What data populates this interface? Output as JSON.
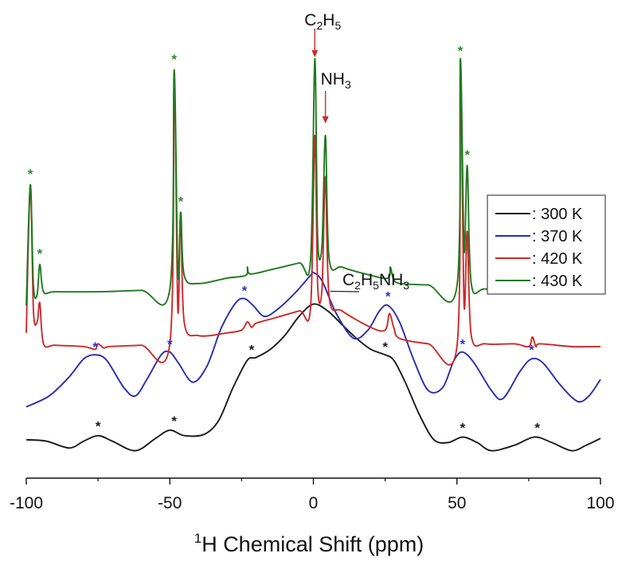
{
  "chart_data": {
    "type": "line",
    "xlabel_sup": "1",
    "xlabel_main": "H Chemical Shift (ppm)",
    "ylabel": "",
    "xlim": [
      -100,
      100
    ],
    "xticks": [
      -100,
      -50,
      0,
      50,
      100
    ],
    "xtick_labels": [
      "-100",
      "-50",
      "0",
      "50",
      "100"
    ],
    "y_ticks_shown": false,
    "grid": false,
    "legend_position": "right",
    "series": [
      {
        "name": ": 300 K",
        "color": "#1a1a1a",
        "points": [
          [
            -100,
            0.09
          ],
          [
            -93,
            0.085
          ],
          [
            -85,
            0.06
          ],
          [
            -80,
            0.085
          ],
          [
            -75,
            0.105
          ],
          [
            -70,
            0.085
          ],
          [
            -62,
            0.05
          ],
          [
            -55,
            0.095
          ],
          [
            -50,
            0.125
          ],
          [
            -45,
            0.105
          ],
          [
            -38,
            0.11
          ],
          [
            -33,
            0.16
          ],
          [
            -28,
            0.28
          ],
          [
            -23,
            0.38
          ],
          [
            -20,
            0.39
          ],
          [
            -15,
            0.42
          ],
          [
            -10,
            0.47
          ],
          [
            -5,
            0.54
          ],
          [
            0,
            0.585
          ],
          [
            5,
            0.56
          ],
          [
            10,
            0.51
          ],
          [
            15,
            0.46
          ],
          [
            20,
            0.42
          ],
          [
            25,
            0.4
          ],
          [
            28,
            0.38
          ],
          [
            32,
            0.3
          ],
          [
            37,
            0.18
          ],
          [
            42,
            0.09
          ],
          [
            47,
            0.08
          ],
          [
            52,
            0.1
          ],
          [
            57,
            0.08
          ],
          [
            62,
            0.05
          ],
          [
            70,
            0.07
          ],
          [
            77,
            0.1
          ],
          [
            83,
            0.08
          ],
          [
            90,
            0.05
          ],
          [
            95,
            0.07
          ],
          [
            100,
            0.095
          ]
        ]
      },
      {
        "name": ": 370 K",
        "color": "#2b2bb2",
        "points": [
          [
            -100,
            0.21
          ],
          [
            -92,
            0.25
          ],
          [
            -85,
            0.32
          ],
          [
            -80,
            0.385
          ],
          [
            -76,
            0.4
          ],
          [
            -72,
            0.38
          ],
          [
            -66,
            0.28
          ],
          [
            -62,
            0.25
          ],
          [
            -58,
            0.31
          ],
          [
            -53,
            0.4
          ],
          [
            -50,
            0.41
          ],
          [
            -47,
            0.37
          ],
          [
            -42,
            0.3
          ],
          [
            -37,
            0.36
          ],
          [
            -32,
            0.5
          ],
          [
            -27,
            0.59
          ],
          [
            -24,
            0.605
          ],
          [
            -21,
            0.58
          ],
          [
            -17,
            0.54
          ],
          [
            -12,
            0.57
          ],
          [
            -6,
            0.63
          ],
          [
            -1,
            0.69
          ],
          [
            0,
            0.7
          ],
          [
            3,
            0.67
          ],
          [
            8,
            0.55
          ],
          [
            14,
            0.46
          ],
          [
            19,
            0.49
          ],
          [
            23,
            0.56
          ],
          [
            26,
            0.58
          ],
          [
            30,
            0.52
          ],
          [
            35,
            0.38
          ],
          [
            40,
            0.27
          ],
          [
            45,
            0.28
          ],
          [
            49,
            0.38
          ],
          [
            52,
            0.41
          ],
          [
            56,
            0.37
          ],
          [
            62,
            0.27
          ],
          [
            66,
            0.24
          ],
          [
            72,
            0.34
          ],
          [
            76,
            0.385
          ],
          [
            80,
            0.37
          ],
          [
            86,
            0.29
          ],
          [
            92,
            0.23
          ],
          [
            96,
            0.25
          ],
          [
            100,
            0.31
          ]
        ]
      },
      {
        "name": ": 420 K",
        "color": "#cc2a2a",
        "points": [
          [
            -100,
            0.48
          ],
          [
            -98.6,
            1.02
          ],
          [
            -97.5,
            0.56
          ],
          [
            -96.2,
            0.52
          ],
          [
            -95.3,
            0.59
          ],
          [
            -94,
            0.44
          ],
          [
            -90,
            0.435
          ],
          [
            -80,
            0.43
          ],
          [
            -76,
            0.42
          ],
          [
            -75,
            0.44
          ],
          [
            -73,
            0.425
          ],
          [
            -71,
            0.43
          ],
          [
            -60,
            0.435
          ],
          [
            -50,
            0.44
          ],
          [
            -48.5,
            1.38
          ],
          [
            -47.2,
            0.56
          ],
          [
            -46.2,
            0.92
          ],
          [
            -45,
            0.52
          ],
          [
            -40,
            0.47
          ],
          [
            -30,
            0.48
          ],
          [
            -25,
            0.49
          ],
          [
            -23,
            0.52
          ],
          [
            -21.5,
            0.5
          ],
          [
            -20,
            0.515
          ],
          [
            -15,
            0.53
          ],
          [
            -5,
            0.56
          ],
          [
            -1,
            0.57
          ],
          [
            0.5,
            1.2
          ],
          [
            1.5,
            0.65
          ],
          [
            3,
            0.64
          ],
          [
            4.2,
            1.05
          ],
          [
            5.5,
            0.61
          ],
          [
            10,
            0.56
          ],
          [
            20,
            0.5
          ],
          [
            25,
            0.49
          ],
          [
            26.5,
            0.55
          ],
          [
            28,
            0.5
          ],
          [
            30,
            0.46
          ],
          [
            40,
            0.44
          ],
          [
            50,
            0.43
          ],
          [
            51.2,
            1.4
          ],
          [
            52.5,
            0.58
          ],
          [
            53.6,
            0.85
          ],
          [
            55,
            0.47
          ],
          [
            60,
            0.44
          ],
          [
            70,
            0.44
          ],
          [
            75,
            0.43
          ],
          [
            76.3,
            0.465
          ],
          [
            77.5,
            0.43
          ],
          [
            79,
            0.44
          ],
          [
            90,
            0.43
          ],
          [
            100,
            0.43
          ]
        ]
      },
      {
        "name": ": 430 K",
        "color": "#1f7a1f",
        "points": [
          [
            -100,
            0.58
          ],
          [
            -98.6,
            1.02
          ],
          [
            -97.5,
            0.65
          ],
          [
            -96.2,
            0.62
          ],
          [
            -95.3,
            0.73
          ],
          [
            -94,
            0.63
          ],
          [
            -90,
            0.63
          ],
          [
            -75,
            0.63
          ],
          [
            -60,
            0.635
          ],
          [
            -50,
            0.64
          ],
          [
            -48.5,
            1.44
          ],
          [
            -47.2,
            0.69
          ],
          [
            -46.2,
            0.92
          ],
          [
            -45,
            0.69
          ],
          [
            -40,
            0.66
          ],
          [
            -30,
            0.68
          ],
          [
            -23.5,
            0.69
          ],
          [
            -23,
            0.72
          ],
          [
            -22,
            0.695
          ],
          [
            -15,
            0.71
          ],
          [
            -5,
            0.735
          ],
          [
            -1,
            0.745
          ],
          [
            0.5,
            1.48
          ],
          [
            1.5,
            0.82
          ],
          [
            3,
            0.8
          ],
          [
            4.2,
            1.2
          ],
          [
            5.5,
            0.75
          ],
          [
            10,
            0.72
          ],
          [
            20,
            0.69
          ],
          [
            26,
            0.68
          ],
          [
            26.8,
            0.72
          ],
          [
            27.8,
            0.68
          ],
          [
            30,
            0.66
          ],
          [
            40,
            0.655
          ],
          [
            50,
            0.65
          ],
          [
            51.2,
            1.48
          ],
          [
            52.5,
            0.78
          ],
          [
            53.6,
            1.09
          ],
          [
            55,
            0.66
          ],
          [
            60,
            0.64
          ],
          [
            75,
            0.63
          ],
          [
            76.3,
            0.655
          ],
          [
            77.5,
            0.63
          ],
          [
            90,
            0.625
          ],
          [
            100,
            0.625
          ]
        ]
      }
    ],
    "asterisks": [
      {
        "series": ": 430 K",
        "color": "#2e8b2e",
        "points": [
          [
            -98.6,
            1.06
          ],
          [
            -95.3,
            0.77
          ],
          [
            -48.5,
            1.48
          ],
          [
            -46.2,
            0.96
          ],
          [
            51.2,
            1.51
          ],
          [
            53.6,
            1.13
          ]
        ]
      },
      {
        "series": ": 370 K",
        "color": "#3333cc",
        "points": [
          [
            -76,
            0.43
          ],
          [
            -50,
            0.44
          ],
          [
            -24,
            0.635
          ],
          [
            26,
            0.615
          ],
          [
            52,
            0.44
          ],
          [
            76,
            0.42
          ]
        ]
      },
      {
        "series": ": 300 K",
        "color": "#1a1a1a",
        "points": [
          [
            -75,
            0.14
          ],
          [
            -48.5,
            0.16
          ],
          [
            -21.5,
            0.42
          ],
          [
            25,
            0.43
          ],
          [
            52,
            0.135
          ],
          [
            78,
            0.135
          ]
        ]
      }
    ],
    "annotations": [
      {
        "main": "C",
        "sub1": "2",
        "mid": "H",
        "sub2": "5",
        "rest": "",
        "target_x": 0.5,
        "target_y": 1.48,
        "arrow_color": "#cc2a2a"
      },
      {
        "main": "NH",
        "sub1": "3",
        "mid": "",
        "sub2": "",
        "rest": "",
        "target_x": 4.2,
        "target_y": 1.22,
        "arrow_color": "#cc2a2a"
      },
      {
        "main": "C",
        "sub1": "2",
        "mid": "H",
        "sub2": "5",
        "rest": "NH",
        "sub3": "3",
        "target_x": 2,
        "target_y": 0.62,
        "arrow_color": "#1a1a1a"
      }
    ]
  }
}
